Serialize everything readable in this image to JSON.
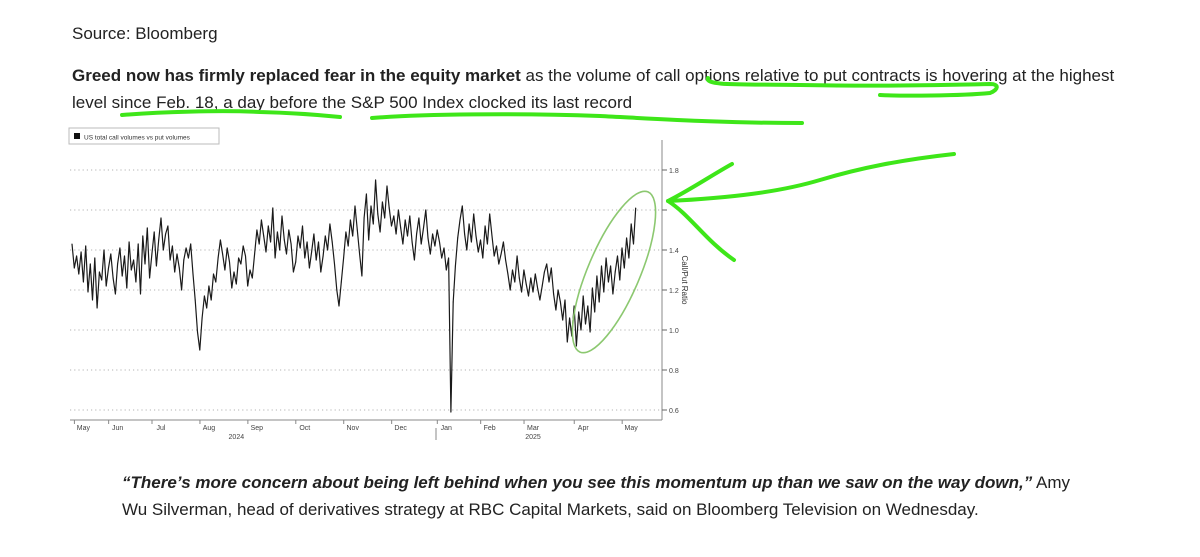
{
  "header": {
    "source": "Source: Bloomberg"
  },
  "article": {
    "lead_bold": "Greed now has firmly replaced fear in the equity market",
    "lead_rest": " as the volume of call options relative to put contracts is hovering at the highest level since Feb. 18, a day before the S&P 500 Index clocked its last record"
  },
  "quote": {
    "text": "“There’s more concern about being left behind when you see this momentum up than we saw on the way down,”",
    "attribution": " Amy Wu Silverman, head of derivatives strategy at RBC Capital Markets, said on Bloomberg Television on Wednesday."
  },
  "annotation_color": "#3ee619",
  "ellipse_color": "#8cc870",
  "chart_data": {
    "type": "line",
    "legend": "US total call volumes vs put volumes",
    "ylabel": "Call/Put Ratio",
    "ylim": [
      0.55,
      1.95
    ],
    "yticks": [
      0.6,
      0.8,
      1.0,
      1.2,
      1.4,
      1.6,
      1.8
    ],
    "ytick_labels": [
      "0.6",
      "0.8",
      "1.0",
      "1.2",
      "1.4",
      "",
      "1.8"
    ],
    "xlim": [
      0,
      255
    ],
    "month_ticks": [
      {
        "label": "May",
        "x": 5
      },
      {
        "label": "Jun",
        "x": 20
      },
      {
        "label": "Jul",
        "x": 39
      },
      {
        "label": "Aug",
        "x": 60
      },
      {
        "label": "Sep",
        "x": 81
      },
      {
        "label": "Oct",
        "x": 102
      },
      {
        "label": "Nov",
        "x": 123
      },
      {
        "label": "Dec",
        "x": 144
      },
      {
        "label": "Jan",
        "x": 164
      },
      {
        "label": "Feb",
        "x": 183
      },
      {
        "label": "Mar",
        "x": 202
      },
      {
        "label": "Apr",
        "x": 224
      },
      {
        "label": "May",
        "x": 245
      }
    ],
    "year_labels": [
      {
        "label": "2024",
        "x": 72
      },
      {
        "label": "2025",
        "x": 202
      }
    ],
    "series": [
      {
        "values": [
          1.43,
          1.31,
          1.37,
          1.28,
          1.39,
          1.24,
          1.42,
          1.19,
          1.33,
          1.15,
          1.36,
          1.11,
          1.29,
          1.25,
          1.4,
          1.22,
          1.31,
          1.38,
          1.26,
          1.18,
          1.33,
          1.41,
          1.27,
          1.37,
          1.21,
          1.44,
          1.3,
          1.35,
          1.24,
          1.43,
          1.18,
          1.47,
          1.33,
          1.51,
          1.26,
          1.38,
          1.49,
          1.32,
          1.45,
          1.56,
          1.4,
          1.48,
          1.52,
          1.35,
          1.42,
          1.29,
          1.38,
          1.31,
          1.2,
          1.35,
          1.41,
          1.36,
          1.43,
          1.28,
          1.15,
          0.99,
          0.9,
          1.06,
          1.17,
          1.11,
          1.22,
          1.15,
          1.28,
          1.24,
          1.36,
          1.45,
          1.38,
          1.3,
          1.41,
          1.34,
          1.21,
          1.29,
          1.23,
          1.36,
          1.33,
          1.42,
          1.37,
          1.22,
          1.3,
          1.26,
          1.38,
          1.5,
          1.43,
          1.55,
          1.47,
          1.39,
          1.52,
          1.44,
          1.61,
          1.36,
          1.49,
          1.4,
          1.57,
          1.45,
          1.38,
          1.5,
          1.43,
          1.29,
          1.34,
          1.47,
          1.41,
          1.52,
          1.36,
          1.44,
          1.31,
          1.39,
          1.48,
          1.35,
          1.44,
          1.29,
          1.37,
          1.47,
          1.4,
          1.53,
          1.44,
          1.33,
          1.2,
          1.12,
          1.24,
          1.36,
          1.49,
          1.42,
          1.55,
          1.47,
          1.62,
          1.5,
          1.38,
          1.27,
          1.56,
          1.68,
          1.45,
          1.62,
          1.53,
          1.75,
          1.58,
          1.49,
          1.64,
          1.56,
          1.72,
          1.61,
          1.52,
          1.57,
          1.48,
          1.6,
          1.51,
          1.43,
          1.55,
          1.47,
          1.57,
          1.44,
          1.35,
          1.48,
          1.56,
          1.43,
          1.51,
          1.6,
          1.46,
          1.38,
          1.48,
          1.42,
          1.5,
          1.44,
          1.36,
          1.41,
          1.3,
          1.36,
          0.59,
          1.14,
          1.32,
          1.46,
          1.55,
          1.62,
          1.48,
          1.4,
          1.53,
          1.44,
          1.58,
          1.47,
          1.39,
          1.45,
          1.36,
          1.52,
          1.43,
          1.58,
          1.47,
          1.37,
          1.42,
          1.33,
          1.38,
          1.44,
          1.35,
          1.28,
          1.2,
          1.3,
          1.24,
          1.37,
          1.26,
          1.19,
          1.3,
          1.23,
          1.17,
          1.26,
          1.19,
          1.28,
          1.21,
          1.15,
          1.22,
          1.29,
          1.33,
          1.24,
          1.31,
          1.18,
          1.1,
          1.2,
          1.14,
          1.05,
          1.15,
          0.94,
          1.06,
          0.97,
          1.12,
          0.92,
          1.09,
          1.0,
          1.17,
          1.03,
          1.12,
          0.99,
          1.21,
          1.09,
          1.27,
          1.14,
          1.32,
          1.19,
          1.36,
          1.24,
          1.32,
          1.18,
          1.29,
          1.37,
          1.25,
          1.41,
          1.31,
          1.46,
          1.36,
          1.53,
          1.43,
          1.61
        ]
      }
    ]
  }
}
